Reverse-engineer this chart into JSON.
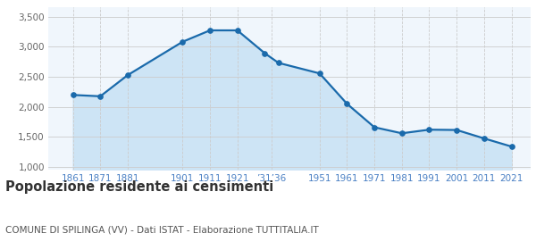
{
  "years": [
    1861,
    1871,
    1881,
    1901,
    1911,
    1921,
    1931,
    1936,
    1951,
    1961,
    1971,
    1981,
    1991,
    2001,
    2011,
    2021
  ],
  "population": [
    2197,
    2175,
    2527,
    3080,
    3270,
    3270,
    2890,
    2730,
    2555,
    2050,
    1660,
    1560,
    1620,
    1615,
    1475,
    1340
  ],
  "y_ticks": [
    1000,
    1500,
    2000,
    2500,
    3000,
    3500
  ],
  "ylim": [
    950,
    3650
  ],
  "xlim_left": 1852,
  "xlim_right": 2028,
  "line_color": "#1a6aab",
  "fill_color": "#cde4f5",
  "marker_color": "#1a6aab",
  "bg_color": "#f0f6fc",
  "title": "Popolazione residente ai censimenti",
  "subtitle": "COMUNE DI SPILINGA (VV) - Dati ISTAT - Elaborazione TUTTITALIA.IT",
  "title_fontsize": 10.5,
  "subtitle_fontsize": 7.5,
  "tick_label_color": "#4a80c4",
  "ytick_label_color": "#666666",
  "grid_color": "#cccccc",
  "x_tick_positions": [
    1861,
    1871,
    1881,
    1901,
    1911,
    1921,
    1933.5,
    1951,
    1961,
    1971,
    1981,
    1991,
    2001,
    2011,
    2021
  ],
  "x_tick_labels": [
    "1861",
    "1871",
    "1881",
    "1901",
    "1911",
    "1921",
    "’31’36",
    "1951",
    "1961",
    "1971",
    "1981",
    "1991",
    "2001",
    "2011",
    "2021"
  ]
}
